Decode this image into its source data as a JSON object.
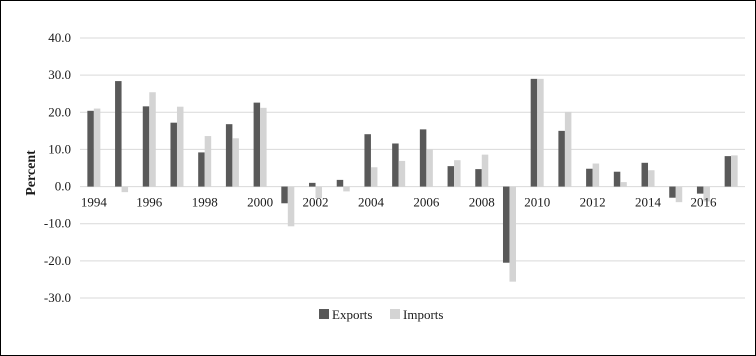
{
  "chart_data": {
    "type": "bar",
    "title": "",
    "xlabel": "",
    "ylabel": "Percent",
    "ylim": [
      -30,
      40
    ],
    "yticks": [
      40,
      30,
      20,
      10,
      0,
      -10,
      -20,
      -30
    ],
    "ytick_labels": [
      "40.0",
      "30.0",
      "20.0",
      "10.0",
      "0.0",
      "-10.0",
      "-20.0",
      "-30.0"
    ],
    "grid": true,
    "legend": "bottom-center",
    "categories": [
      "1994",
      "1995",
      "1996",
      "1997",
      "1998",
      "1999",
      "2000",
      "2001",
      "2002",
      "2003",
      "2004",
      "2005",
      "2006",
      "2007",
      "2008",
      "2009",
      "2010",
      "2011",
      "2012",
      "2013",
      "2014",
      "2015",
      "2016",
      "2017"
    ],
    "xtick_labels": [
      "1994",
      "",
      "1996",
      "",
      "1998",
      "",
      "2000",
      "",
      "2002",
      "",
      "2004",
      "",
      "2006",
      "",
      "2008",
      "",
      "2010",
      "",
      "2012",
      "",
      "2014",
      "",
      "2016",
      ""
    ],
    "series": [
      {
        "name": "Exports",
        "color": "#595959",
        "values": [
          20.4,
          28.4,
          21.6,
          17.2,
          9.2,
          16.8,
          22.6,
          -4.5,
          1.0,
          1.8,
          14.1,
          11.6,
          15.4,
          5.5,
          4.7,
          -20.5,
          29.0,
          15.0,
          4.8,
          4.0,
          6.4,
          -3.0,
          -1.9,
          8.2
        ]
      },
      {
        "name": "Imports",
        "color": "#d4d4d4",
        "values": [
          21.0,
          -1.5,
          25.4,
          21.5,
          13.6,
          13.0,
          21.2,
          -10.7,
          -3.1,
          -1.3,
          5.2,
          6.9,
          10.0,
          7.1,
          8.6,
          -25.6,
          29.0,
          20.1,
          6.2,
          1.2,
          4.4,
          -4.2,
          -4.0,
          8.4
        ]
      }
    ]
  }
}
